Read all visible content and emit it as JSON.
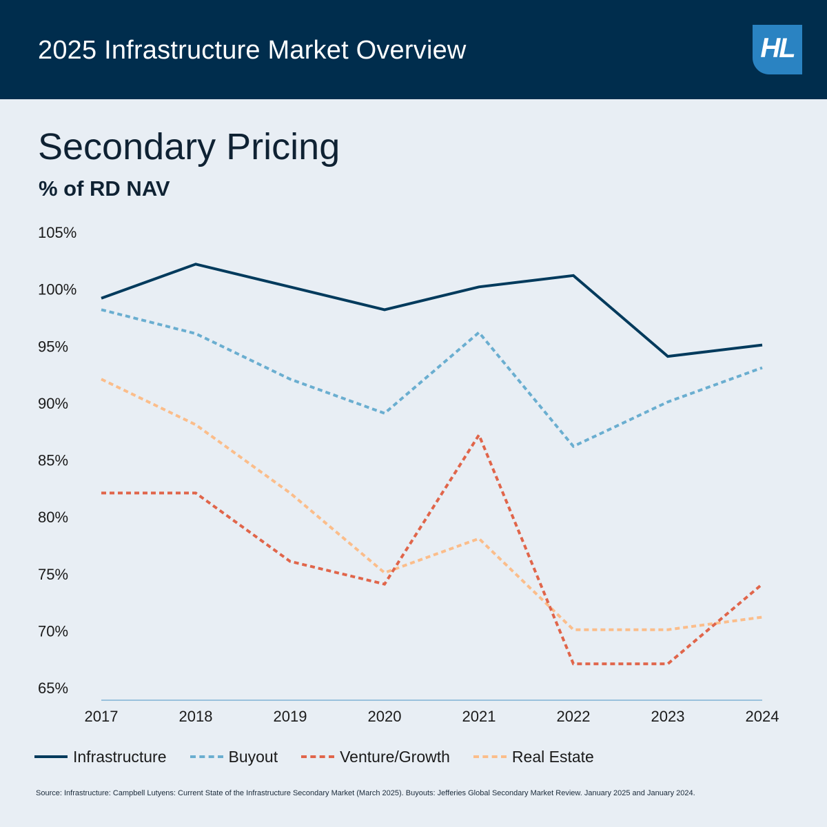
{
  "header": {
    "title": "2025 Infrastructure Market Overview",
    "logo_text": "HL"
  },
  "colors": {
    "header_bg": "#002d4d",
    "page_bg": "#e8eef4",
    "logo_bg": "#2a83c2"
  },
  "chart_data": {
    "type": "line",
    "title": "Secondary Pricing",
    "subtitle": "% of RD NAV",
    "xlabel": "",
    "ylabel": "",
    "x": [
      "2017",
      "2018",
      "2019",
      "2020",
      "2021",
      "2022",
      "2023",
      "2024"
    ],
    "ylim": [
      65,
      105
    ],
    "yticks": [
      "105%",
      "100%",
      "95%",
      "90%",
      "85%",
      "80%",
      "75%",
      "70%",
      "65%"
    ],
    "grid": false,
    "legend_position": "bottom",
    "series": [
      {
        "name": "Infrastructure",
        "values": [
          99.2,
          102.2,
          100.2,
          98.2,
          100.2,
          101.2,
          94.1,
          95.1
        ],
        "color": "#003a5c",
        "style": "solid"
      },
      {
        "name": "Buyout",
        "values": [
          98.2,
          96.1,
          92.1,
          89.1,
          96.2,
          86.2,
          90.1,
          93.1
        ],
        "color": "#6aaed0",
        "style": "dashed"
      },
      {
        "name": "Venture/Growth",
        "values": [
          82.1,
          82.1,
          76.1,
          74.1,
          87.2,
          67.1,
          67.1,
          74.1
        ],
        "color": "#e0654a",
        "style": "dashed"
      },
      {
        "name": "Real Estate",
        "values": [
          92.1,
          88.1,
          82.1,
          75.1,
          78.1,
          70.1,
          70.1,
          71.2
        ],
        "color": "#fbbd8a",
        "style": "dashed"
      }
    ]
  },
  "source": "Source: Infrastructure: Campbell Lutyens: Current State of the Infrastructure Secondary Market (March 2025). Buyouts: Jefferies Global Secondary Market Review. January 2025 and January 2024."
}
